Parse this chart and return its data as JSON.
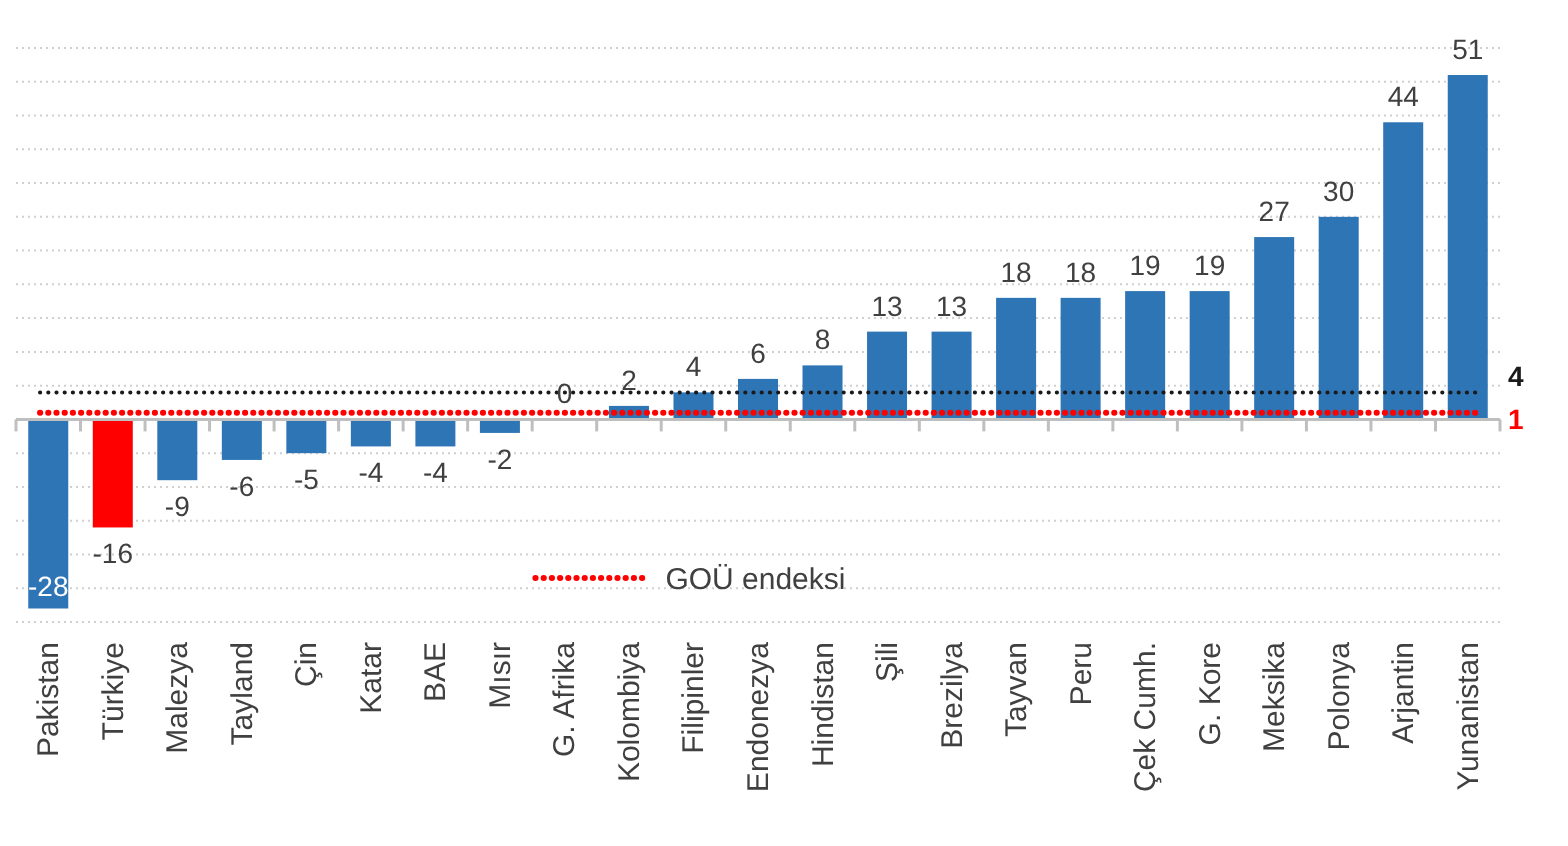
{
  "chart_data": {
    "type": "bar",
    "categories": [
      "Pakistan",
      "Türkiye",
      "Malezya",
      "Tayland",
      "Çin",
      "Katar",
      "BAE",
      "Mısır",
      "G. Afrika",
      "Kolombiya",
      "Filipinler",
      "Endonezya",
      "Hindistan",
      "Şili",
      "Brezilya",
      "Tayvan",
      "Peru",
      "Çek Cumh.",
      "G. Kore",
      "Meksika",
      "Polonya",
      "Arjantin",
      "Yunanistan"
    ],
    "values": [
      -28,
      -16,
      -9,
      -6,
      -5,
      -4,
      -4,
      -2,
      0,
      2,
      4,
      6,
      8,
      13,
      13,
      18,
      18,
      19,
      19,
      27,
      30,
      44,
      51
    ],
    "colors": [
      "#2e75b6",
      "#ff0000",
      "#2e75b6",
      "#2e75b6",
      "#2e75b6",
      "#2e75b6",
      "#2e75b6",
      "#2e75b6",
      "#2e75b6",
      "#2e75b6",
      "#2e75b6",
      "#2e75b6",
      "#2e75b6",
      "#2e75b6",
      "#2e75b6",
      "#2e75b6",
      "#2e75b6",
      "#2e75b6",
      "#2e75b6",
      "#2e75b6",
      "#2e75b6",
      "#2e75b6",
      "#2e75b6"
    ],
    "data_labels": true,
    "ylim": [
      -30,
      55
    ],
    "yticks": [
      {
        "value": -30,
        "label": null
      },
      {
        "value": -25,
        "label": null
      },
      {
        "value": -20,
        "label": null
      },
      {
        "value": -15,
        "label": null
      },
      {
        "value": -10,
        "label": null
      },
      {
        "value": -5,
        "label": null
      },
      {
        "value": 0,
        "label": null
      },
      {
        "value": 5,
        "label": null
      },
      {
        "value": 10,
        "label": null
      },
      {
        "value": 15,
        "label": null
      },
      {
        "value": 20,
        "label": null
      },
      {
        "value": 25,
        "label": null
      },
      {
        "value": 30,
        "label": null
      },
      {
        "value": 35,
        "label": null
      },
      {
        "value": 40,
        "label": null
      },
      {
        "value": 45,
        "label": null
      },
      {
        "value": 50,
        "label": null
      },
      {
        "value": 55,
        "label": null
      }
    ],
    "grid": "y",
    "tick_labels": "x",
    "ref_lines": [
      {
        "axis": "y",
        "value": 1,
        "label": "GOÜ endeksi",
        "color": "#ff0000",
        "line_style": "dotted"
      },
      {
        "axis": "y",
        "value": 4,
        "label": null,
        "color": "#1a1a1a",
        "line_style": "dotted"
      }
    ],
    "annotations": [
      "1",
      "4"
    ],
    "legend": "bottom right"
  }
}
